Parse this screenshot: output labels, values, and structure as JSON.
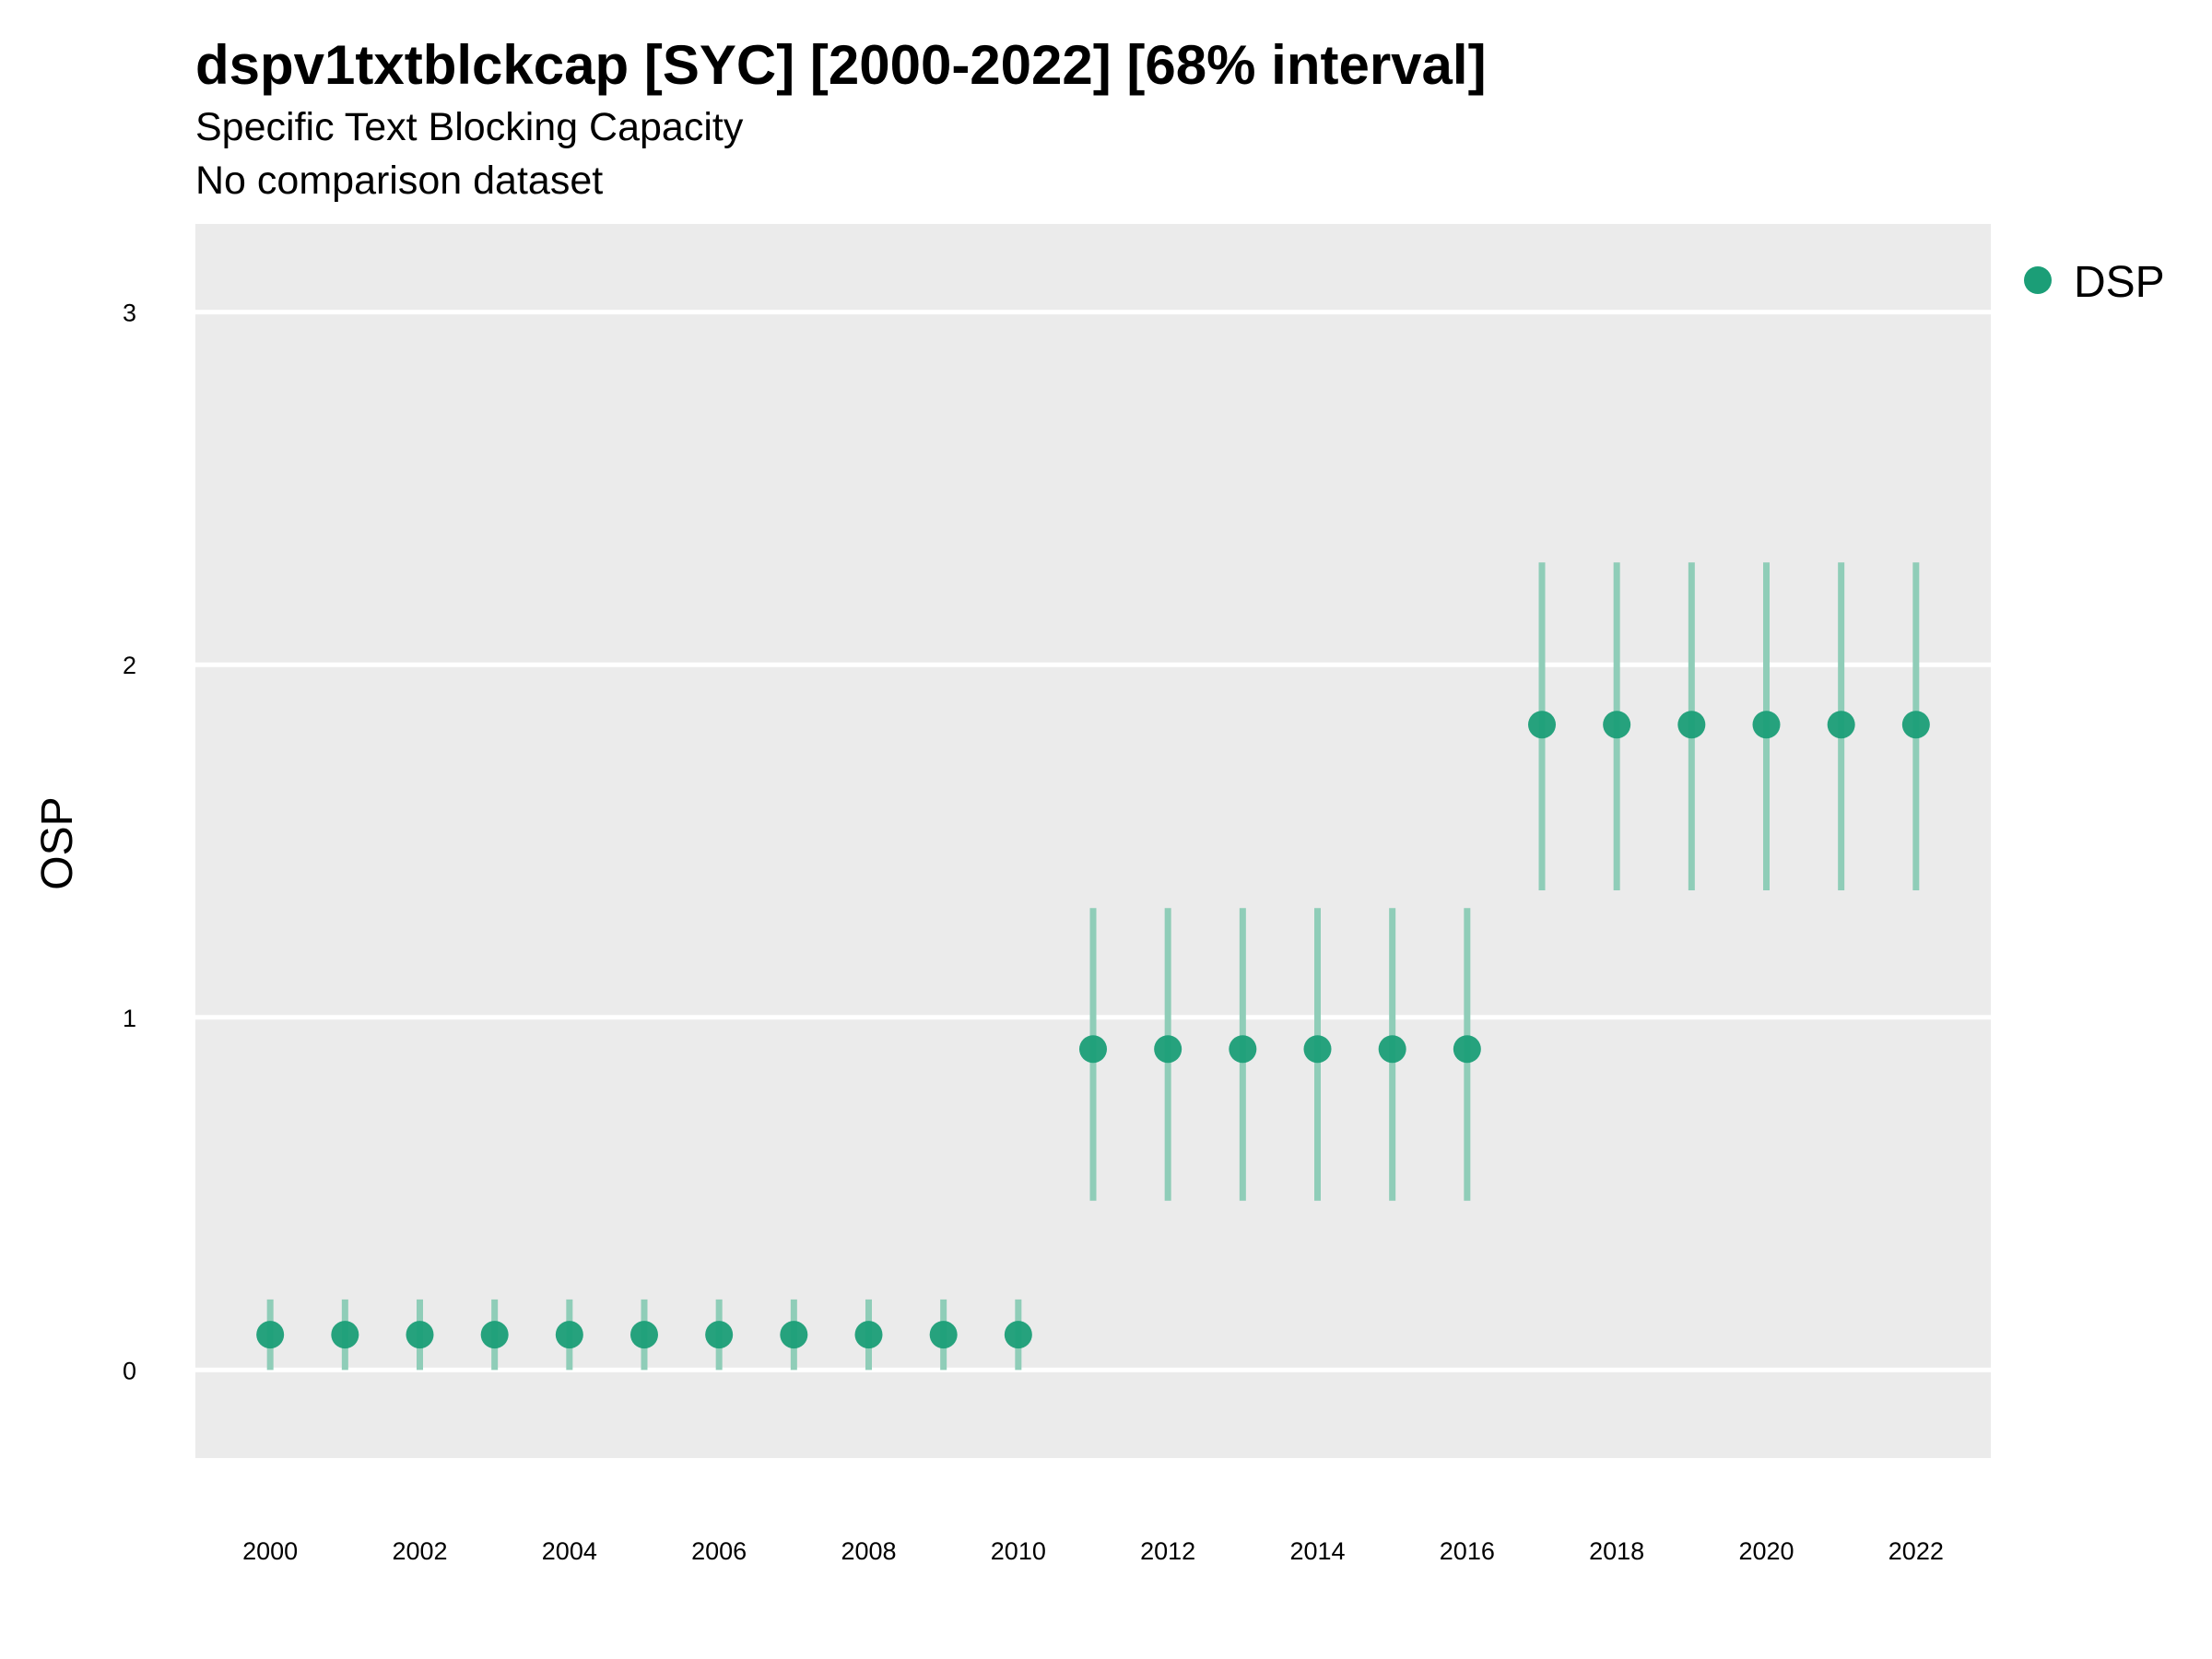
{
  "title": "dspv1txtblckcap [SYC] [2000-2022] [68% interval]",
  "subtitle": "Specific Text Blocking Capacity",
  "subtitle2": "No comparison dataset",
  "colors": {
    "point": "#1b9e77",
    "interval": "#8fcdb8",
    "panel": "#ebebeb",
    "grid": "#ffffff"
  },
  "chart_data": {
    "type": "scatter",
    "title": "dspv1txtblckcap [SYC] [2000-2022] [68% interval]",
    "ylabel": "OSP",
    "xlabel": "",
    "xlim": [
      1999,
      2023
    ],
    "ylim": [
      -0.25,
      3.25
    ],
    "x_ticks": [
      2000,
      2002,
      2004,
      2006,
      2008,
      2010,
      2012,
      2014,
      2016,
      2018,
      2020,
      2022
    ],
    "y_ticks": [
      0,
      1,
      2,
      3
    ],
    "grid": true,
    "legend_position": "right",
    "series": [
      {
        "name": "DSP",
        "x": [
          2000,
          2001,
          2002,
          2003,
          2004,
          2005,
          2006,
          2007,
          2008,
          2009,
          2010,
          2011,
          2012,
          2013,
          2014,
          2015,
          2016,
          2017,
          2018,
          2019,
          2020,
          2021,
          2022
        ],
        "y": [
          0.1,
          0.1,
          0.1,
          0.1,
          0.1,
          0.1,
          0.1,
          0.1,
          0.1,
          0.1,
          0.1,
          0.91,
          0.91,
          0.91,
          0.91,
          0.91,
          0.91,
          1.83,
          1.83,
          1.83,
          1.83,
          1.83,
          1.83
        ],
        "lower": [
          0.0,
          0.0,
          0.0,
          0.0,
          0.0,
          0.0,
          0.0,
          0.0,
          0.0,
          0.0,
          0.0,
          0.48,
          0.48,
          0.48,
          0.48,
          0.48,
          0.48,
          1.36,
          1.36,
          1.36,
          1.36,
          1.36,
          1.36
        ],
        "upper": [
          0.2,
          0.2,
          0.2,
          0.2,
          0.2,
          0.2,
          0.2,
          0.2,
          0.2,
          0.2,
          0.2,
          1.31,
          1.31,
          1.31,
          1.31,
          1.31,
          1.31,
          2.29,
          2.29,
          2.29,
          2.29,
          2.29,
          2.29
        ]
      }
    ]
  }
}
